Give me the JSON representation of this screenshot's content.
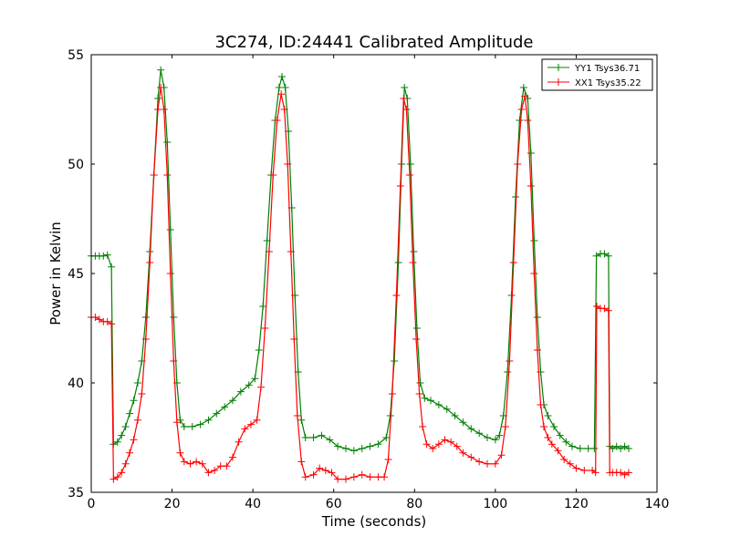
{
  "chart_data": {
    "type": "line",
    "title": "3C274, ID:24441 Calibrated Amplitude",
    "xlabel": "Time (seconds)",
    "ylabel": "Power in Kelvin",
    "xlim": [
      0,
      140
    ],
    "ylim": [
      35,
      55
    ],
    "xticks": [
      "0",
      "20",
      "40",
      "60",
      "80",
      "100",
      "120",
      "140"
    ],
    "yticks": [
      "35",
      "40",
      "45",
      "50",
      "55"
    ],
    "grid": false,
    "legend_position": "top-right",
    "marker": "plus",
    "series": [
      {
        "name": "YY1 Tsys36.71",
        "color": "#008000",
        "points": [
          [
            0,
            45.8
          ],
          [
            1,
            45.8
          ],
          [
            2,
            45.8
          ],
          [
            3,
            45.8
          ],
          [
            4,
            45.85
          ],
          [
            5,
            45.3
          ],
          [
            5.5,
            37.2
          ],
          [
            6.5,
            37.3
          ],
          [
            7.5,
            37.6
          ],
          [
            8.5,
            38.0
          ],
          [
            9.5,
            38.6
          ],
          [
            10.5,
            39.2
          ],
          [
            11.5,
            40.0
          ],
          [
            12.5,
            41.0
          ],
          [
            13.5,
            43.0
          ],
          [
            14.5,
            46.0
          ],
          [
            15.5,
            49.5
          ],
          [
            16.5,
            53.0
          ],
          [
            17.2,
            54.3
          ],
          [
            18,
            53.5
          ],
          [
            18.8,
            51.0
          ],
          [
            19.6,
            47.0
          ],
          [
            20.4,
            43.0
          ],
          [
            21.2,
            40.0
          ],
          [
            22,
            38.3
          ],
          [
            23,
            38.0
          ],
          [
            25,
            38.0
          ],
          [
            27,
            38.1
          ],
          [
            29,
            38.3
          ],
          [
            31,
            38.6
          ],
          [
            33,
            38.9
          ],
          [
            35,
            39.2
          ],
          [
            37,
            39.6
          ],
          [
            39,
            39.9
          ],
          [
            40.5,
            40.2
          ],
          [
            41.5,
            41.5
          ],
          [
            42.5,
            43.5
          ],
          [
            43.5,
            46.5
          ],
          [
            44.5,
            49.5
          ],
          [
            45.5,
            52.0
          ],
          [
            46.5,
            53.5
          ],
          [
            47.2,
            54.0
          ],
          [
            48,
            53.5
          ],
          [
            48.8,
            51.5
          ],
          [
            49.6,
            48.0
          ],
          [
            50.4,
            44.0
          ],
          [
            51.2,
            40.5
          ],
          [
            52,
            38.3
          ],
          [
            53,
            37.5
          ],
          [
            55,
            37.5
          ],
          [
            57,
            37.6
          ],
          [
            59,
            37.4
          ],
          [
            61,
            37.1
          ],
          [
            63,
            37.0
          ],
          [
            65,
            36.9
          ],
          [
            67,
            37.0
          ],
          [
            69,
            37.1
          ],
          [
            71,
            37.2
          ],
          [
            73,
            37.5
          ],
          [
            74,
            38.5
          ],
          [
            75,
            41.0
          ],
          [
            76,
            45.5
          ],
          [
            76.8,
            50.0
          ],
          [
            77.5,
            53.5
          ],
          [
            78.2,
            53.0
          ],
          [
            79,
            50.0
          ],
          [
            79.8,
            46.0
          ],
          [
            80.6,
            42.5
          ],
          [
            81.4,
            40.0
          ],
          [
            82.5,
            39.3
          ],
          [
            84,
            39.2
          ],
          [
            86,
            39.0
          ],
          [
            88,
            38.8
          ],
          [
            90,
            38.5
          ],
          [
            92,
            38.2
          ],
          [
            94,
            37.9
          ],
          [
            96,
            37.7
          ],
          [
            98,
            37.5
          ],
          [
            100,
            37.4
          ],
          [
            101,
            37.6
          ],
          [
            102,
            38.5
          ],
          [
            103,
            40.5
          ],
          [
            104,
            44.0
          ],
          [
            105,
            48.5
          ],
          [
            106,
            52.0
          ],
          [
            107,
            53.5
          ],
          [
            108,
            53.0
          ],
          [
            108.8,
            50.5
          ],
          [
            109.6,
            46.5
          ],
          [
            110.4,
            43.0
          ],
          [
            111.2,
            40.5
          ],
          [
            112,
            39.0
          ],
          [
            113,
            38.5
          ],
          [
            114.5,
            38.0
          ],
          [
            116,
            37.6
          ],
          [
            117.5,
            37.3
          ],
          [
            119,
            37.1
          ],
          [
            121,
            37.0
          ],
          [
            123,
            37.0
          ],
          [
            124.5,
            37.0
          ],
          [
            125,
            45.8
          ],
          [
            126,
            45.9
          ],
          [
            127,
            45.9
          ],
          [
            128,
            45.8
          ],
          [
            128.3,
            37.1
          ],
          [
            129,
            37.0
          ],
          [
            130,
            37.1
          ],
          [
            131,
            37.0
          ],
          [
            132,
            37.1
          ],
          [
            133,
            37.0
          ]
        ]
      },
      {
        "name": "XX1 Tsys35.22",
        "color": "#ff0000",
        "points": [
          [
            0,
            43.0
          ],
          [
            1,
            43.0
          ],
          [
            2,
            42.9
          ],
          [
            3,
            42.8
          ],
          [
            4,
            42.8
          ],
          [
            5,
            42.7
          ],
          [
            5.5,
            35.6
          ],
          [
            6.5,
            35.7
          ],
          [
            7.5,
            35.9
          ],
          [
            8.5,
            36.3
          ],
          [
            9.5,
            36.8
          ],
          [
            10.5,
            37.4
          ],
          [
            11.5,
            38.3
          ],
          [
            12.5,
            39.5
          ],
          [
            13.5,
            42.0
          ],
          [
            14.5,
            45.5
          ],
          [
            15.5,
            49.5
          ],
          [
            16.5,
            52.5
          ],
          [
            17.2,
            53.5
          ],
          [
            18,
            52.5
          ],
          [
            18.8,
            49.5
          ],
          [
            19.6,
            45.0
          ],
          [
            20.4,
            41.0
          ],
          [
            21.2,
            38.2
          ],
          [
            22,
            36.8
          ],
          [
            23,
            36.4
          ],
          [
            24.5,
            36.3
          ],
          [
            26,
            36.4
          ],
          [
            27.5,
            36.3
          ],
          [
            29,
            35.9
          ],
          [
            30.5,
            36.0
          ],
          [
            32,
            36.2
          ],
          [
            33.5,
            36.2
          ],
          [
            35,
            36.6
          ],
          [
            36.5,
            37.3
          ],
          [
            38,
            37.9
          ],
          [
            39.5,
            38.1
          ],
          [
            41,
            38.3
          ],
          [
            42,
            39.8
          ],
          [
            43,
            42.5
          ],
          [
            44,
            46.0
          ],
          [
            45,
            49.5
          ],
          [
            46,
            52.0
          ],
          [
            47,
            53.2
          ],
          [
            47.8,
            52.5
          ],
          [
            48.6,
            50.0
          ],
          [
            49.4,
            46.0
          ],
          [
            50.2,
            42.0
          ],
          [
            51,
            38.5
          ],
          [
            52,
            36.4
          ],
          [
            53,
            35.7
          ],
          [
            55,
            35.8
          ],
          [
            56.5,
            36.1
          ],
          [
            58,
            36.0
          ],
          [
            59.5,
            35.9
          ],
          [
            61,
            35.6
          ],
          [
            63,
            35.6
          ],
          [
            65,
            35.7
          ],
          [
            67,
            35.8
          ],
          [
            69,
            35.7
          ],
          [
            71,
            35.7
          ],
          [
            72.5,
            35.7
          ],
          [
            73.5,
            36.5
          ],
          [
            74.5,
            39.5
          ],
          [
            75.5,
            44.0
          ],
          [
            76.5,
            49.0
          ],
          [
            77.3,
            53.0
          ],
          [
            78,
            52.5
          ],
          [
            78.8,
            49.5
          ],
          [
            79.6,
            45.5
          ],
          [
            80.4,
            42.0
          ],
          [
            81.2,
            39.5
          ],
          [
            82,
            38.0
          ],
          [
            83,
            37.2
          ],
          [
            84.5,
            37.0
          ],
          [
            86,
            37.2
          ],
          [
            87.5,
            37.4
          ],
          [
            89,
            37.3
          ],
          [
            90.5,
            37.1
          ],
          [
            92,
            36.8
          ],
          [
            94,
            36.6
          ],
          [
            96,
            36.4
          ],
          [
            98,
            36.3
          ],
          [
            100,
            36.3
          ],
          [
            101.5,
            36.7
          ],
          [
            102.5,
            38.0
          ],
          [
            103.5,
            41.0
          ],
          [
            104.5,
            45.5
          ],
          [
            105.5,
            50.0
          ],
          [
            106.5,
            52.5
          ],
          [
            107.3,
            53.1
          ],
          [
            108,
            52.0
          ],
          [
            108.8,
            49.0
          ],
          [
            109.6,
            45.0
          ],
          [
            110.4,
            41.5
          ],
          [
            111.2,
            39.0
          ],
          [
            112,
            38.0
          ],
          [
            113,
            37.5
          ],
          [
            114,
            37.2
          ],
          [
            115.5,
            36.9
          ],
          [
            117,
            36.5
          ],
          [
            118.5,
            36.3
          ],
          [
            120,
            36.1
          ],
          [
            122,
            36.0
          ],
          [
            124,
            36.0
          ],
          [
            124.8,
            35.9
          ],
          [
            125.1,
            43.5
          ],
          [
            126,
            43.4
          ],
          [
            127,
            43.4
          ],
          [
            128,
            43.3
          ],
          [
            128.3,
            35.9
          ],
          [
            129,
            35.9
          ],
          [
            130,
            35.9
          ],
          [
            131,
            35.9
          ],
          [
            132,
            35.8
          ],
          [
            133,
            35.9
          ]
        ]
      }
    ]
  }
}
